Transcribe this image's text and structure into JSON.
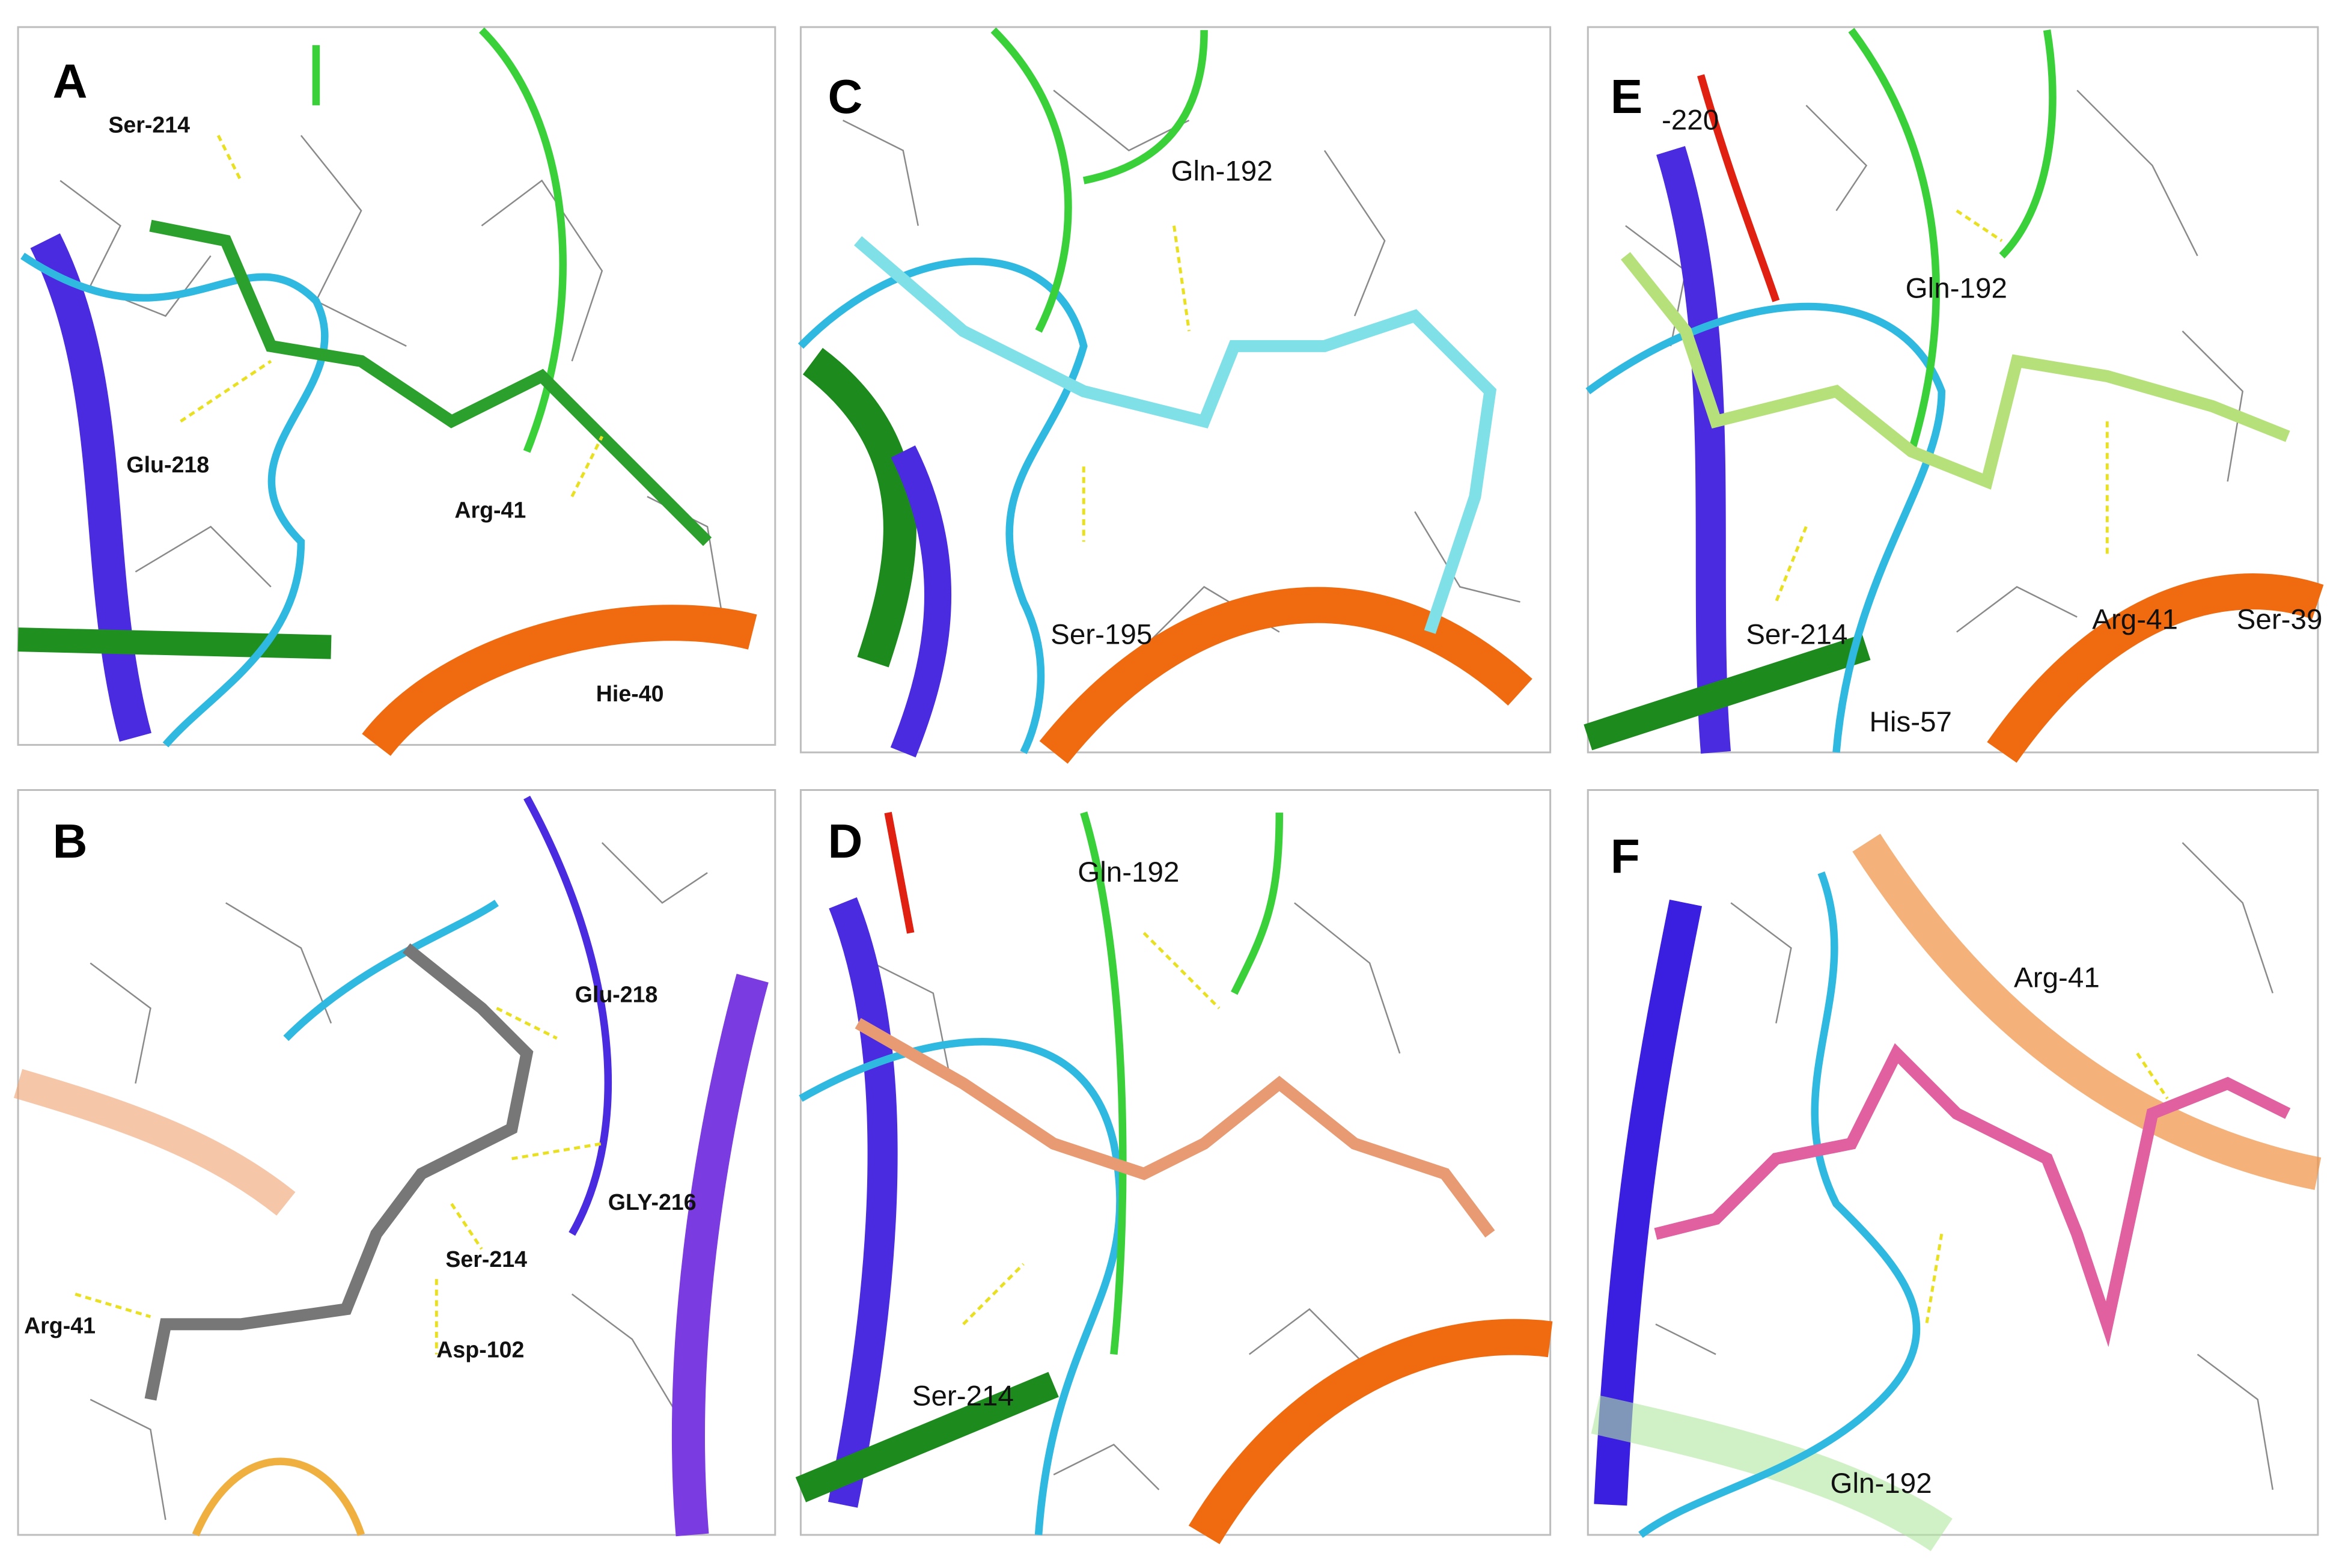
{
  "panels": [
    {
      "label": "A",
      "residues": [
        "Ser-214",
        "Glu-218",
        "Arg-41",
        "Hie-40"
      ]
    },
    {
      "label": "B",
      "residues": [
        "Glu-218",
        "GLY-216",
        "Ser-214",
        "Asp-102",
        "Arg-41"
      ]
    },
    {
      "label": "C",
      "residues": [
        "Gln-192",
        "Ser-195"
      ]
    },
    {
      "label": "D",
      "residues": [
        "Gln-192",
        "Ser-214"
      ]
    },
    {
      "label": "E",
      "residues": [
        "-220",
        "Gln-192",
        "Ser-214",
        "His-57",
        "Arg-41",
        "Ser-39"
      ]
    },
    {
      "label": "F",
      "residues": [
        "Arg-41",
        "Gln-192"
      ]
    }
  ]
}
